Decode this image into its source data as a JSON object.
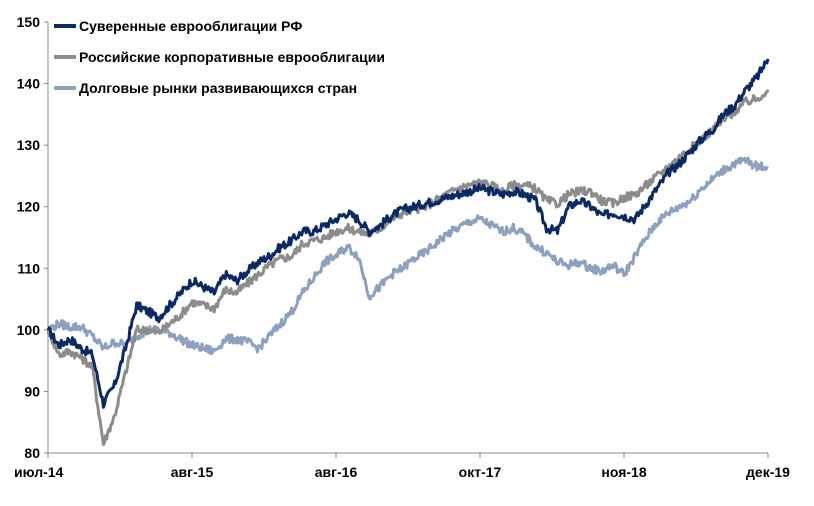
{
  "chart_data": {
    "type": "line",
    "title": "",
    "xlabel": "",
    "ylabel": "",
    "ylim": [
      80,
      150
    ],
    "y_ticks": [
      "80",
      "90",
      "100",
      "110",
      "120",
      "130",
      "140",
      "150"
    ],
    "x_ticks": [
      "июл-14",
      "авг-15",
      "авг-16",
      "окт-17",
      "ноя-18",
      "дек-19"
    ],
    "grid": false,
    "legend_position": "top-left",
    "x": [
      "июл-14",
      "авг-14",
      "сен-14",
      "окт-14",
      "ноя-14",
      "дек-14",
      "янв-15",
      "фев-15",
      "мар-15",
      "апр-15",
      "май-15",
      "июн-15",
      "июл-15",
      "авг-15",
      "сен-15",
      "окт-15",
      "ноя-15",
      "дек-15",
      "янв-16",
      "фев-16",
      "мар-16",
      "апр-16",
      "май-16",
      "июн-16",
      "июл-16",
      "авг-16",
      "сен-16",
      "окт-16",
      "ноя-16",
      "дек-16",
      "янв-17",
      "фев-17",
      "мар-17",
      "апр-17",
      "май-17",
      "июн-17",
      "июл-17",
      "авг-17",
      "сен-17",
      "окт-17",
      "ноя-17",
      "дек-17",
      "янв-18",
      "фев-18",
      "мар-18",
      "апр-18",
      "май-18",
      "июн-18",
      "июл-18",
      "авг-18",
      "сен-18",
      "окт-18",
      "ноя-18",
      "дек-18",
      "янв-19",
      "фев-19",
      "мар-19",
      "апр-19",
      "май-19",
      "июн-19",
      "июл-19",
      "авг-19",
      "сен-19",
      "окт-19",
      "ноя-19",
      "дек-19"
    ],
    "series": [
      {
        "name": "Суверенные еврооблигации РФ",
        "color": "#0a2a66",
        "values": [
          100,
          97.5,
          98.5,
          97,
          96,
          88,
          91,
          97,
          104,
          103,
          102,
          104,
          106,
          108,
          107,
          106,
          109,
          108,
          109.5,
          111,
          112,
          113.5,
          114.5,
          116,
          116,
          117,
          118,
          119,
          118,
          116,
          117,
          118.5,
          119.5,
          120,
          120.5,
          121,
          121.5,
          122,
          122.5,
          123,
          122.5,
          122,
          122.5,
          122,
          121,
          116.5,
          116,
          120,
          121,
          120,
          118.5,
          119,
          118.5,
          118,
          120.5,
          123,
          125.5,
          127,
          129,
          131,
          132.5,
          135,
          136.5,
          139,
          141,
          144
        ]
      },
      {
        "name": "Российские корпоративные еврооблигации",
        "color": "#8c8c8c",
        "values": [
          100,
          96,
          96.5,
          95.5,
          94,
          81.5,
          86,
          93,
          100,
          100,
          99.5,
          101,
          102.5,
          104.5,
          104,
          103.5,
          106.5,
          106,
          107.5,
          109,
          110.5,
          111.5,
          112,
          114,
          114.5,
          115,
          116,
          116.5,
          116,
          115.5,
          116.5,
          118,
          119,
          119.5,
          120,
          121,
          122,
          123,
          123.5,
          124,
          123.5,
          122.5,
          123.5,
          123.5,
          123,
          121,
          120.5,
          122,
          122.5,
          122.5,
          121,
          120.5,
          121.5,
          122,
          123.5,
          125,
          126.5,
          128,
          129.5,
          131,
          132.5,
          134,
          135.5,
          137,
          137.5,
          139
        ]
      },
      {
        "name": "Долговые рынки развивающихся стран",
        "color": "#8ba1bf",
        "values": [
          100,
          101,
          100.5,
          100.5,
          99,
          97,
          98,
          97.5,
          99,
          100,
          100,
          99.5,
          98.5,
          97.5,
          97,
          96.5,
          98.5,
          98.5,
          98,
          97,
          99,
          101,
          103,
          106,
          108.5,
          111,
          112,
          113.5,
          112,
          105.5,
          107,
          109,
          110,
          111.5,
          112.5,
          114,
          115.5,
          116.5,
          117.5,
          118,
          117,
          116,
          116.5,
          115.5,
          113.5,
          112.5,
          111,
          110.5,
          111,
          110,
          109.5,
          110.5,
          109,
          112,
          115,
          117.5,
          119,
          120,
          121,
          123,
          124.5,
          126,
          127,
          127.5,
          126.5,
          126.5
        ]
      }
    ]
  }
}
